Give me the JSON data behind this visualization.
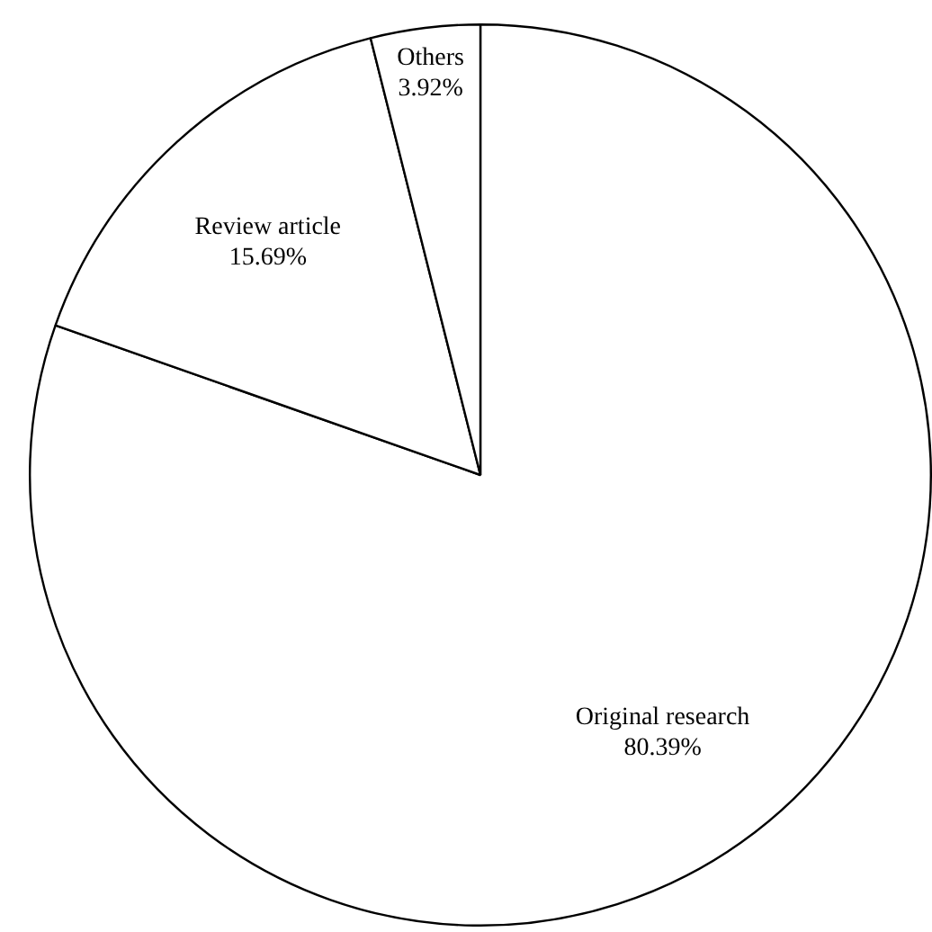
{
  "chart_data": {
    "type": "pie",
    "categories": [
      "Original research",
      "Review article",
      "Others"
    ],
    "values": [
      80.39,
      15.69,
      3.92
    ],
    "value_labels": [
      "80.39%",
      "15.69%",
      "3.92%"
    ],
    "colors": [
      "#ffffff",
      "#ffffff",
      "#ffffff"
    ],
    "legend": false
  }
}
